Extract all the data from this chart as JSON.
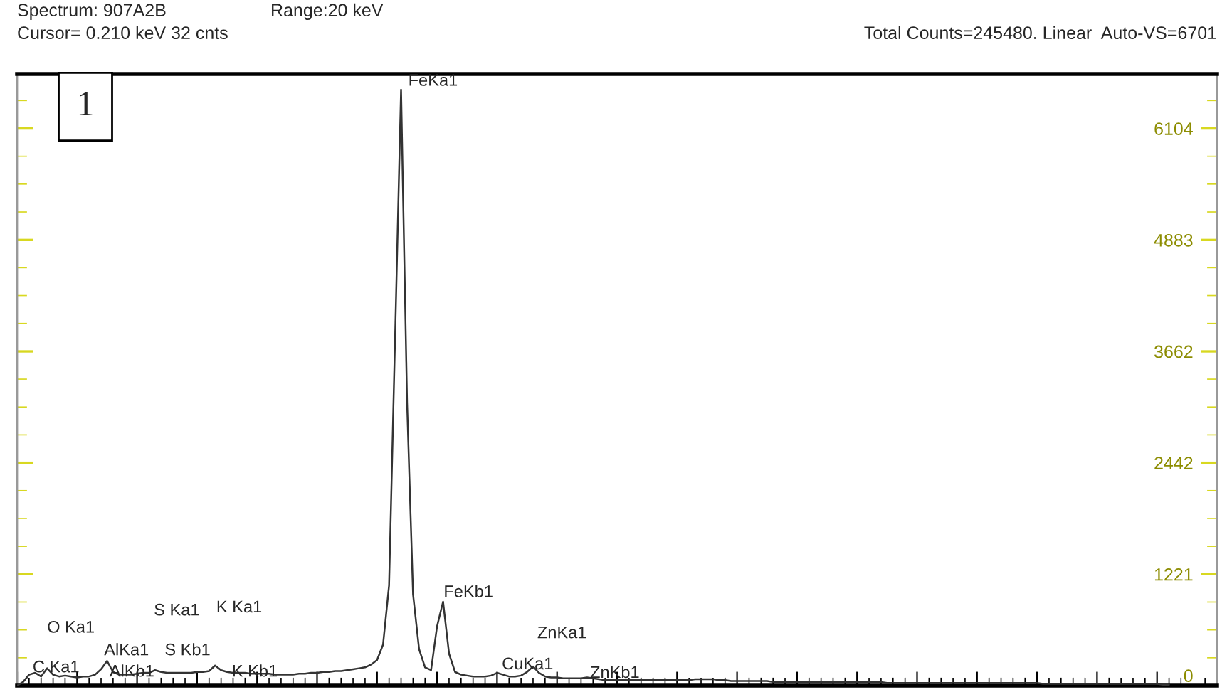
{
  "chart_data": {
    "type": "line",
    "annotations": [
      "Spectrum: 907A2B",
      "Range:20 keV",
      "Cursor= 0.210 keV 32 cnts",
      "Total Counts=245480. Linear  Auto-VS=6701",
      "1",
      "FeKa1",
      "FeKb1",
      "O Ka1",
      "C Ka1",
      "AlKa1",
      "AlKb1",
      "S Ka1",
      "S Kb1",
      "K Ka1",
      "K Kb1",
      "CuKa1",
      "ZnKa1",
      "ZnKb1"
    ],
    "categories": [
      null,
      null,
      null,
      null,
      null,
      null,
      null,
      null,
      null,
      null,
      null,
      null,
      null,
      null,
      null,
      null,
      null,
      null,
      null,
      null,
      null,
      null,
      null,
      null,
      null,
      null,
      null,
      null,
      null,
      null,
      null,
      null,
      null,
      null,
      null,
      null,
      null,
      null,
      null,
      null,
      null,
      null,
      null,
      null,
      null,
      null,
      null,
      null,
      null,
      null,
      null,
      null,
      null,
      null,
      null,
      null,
      null,
      null,
      null,
      null,
      null,
      null,
      null,
      null,
      null,
      null,
      null,
      null,
      null,
      null,
      null,
      null,
      null,
      null,
      null,
      null,
      null,
      null,
      null,
      null,
      null,
      null,
      null,
      null,
      null,
      null,
      null,
      null,
      null,
      null,
      null,
      null,
      null,
      null,
      null,
      null,
      null,
      null,
      null,
      null,
      null,
      null,
      null,
      null,
      null,
      null,
      null,
      null,
      null,
      null,
      null,
      null,
      null,
      null,
      null,
      null,
      null,
      null,
      null,
      null,
      null,
      null,
      null,
      null,
      null,
      null,
      null,
      null,
      null,
      null,
      null,
      null,
      null,
      null,
      null,
      null,
      null,
      null,
      null,
      null,
      null,
      null,
      null,
      null,
      null,
      null,
      null,
      null,
      null,
      null,
      null,
      null,
      null,
      null,
      null,
      null,
      null,
      null,
      null,
      null,
      null,
      null,
      null,
      null,
      null,
      null,
      null,
      null,
      null,
      null,
      null,
      null,
      null,
      null,
      null,
      null,
      null,
      null,
      null,
      null,
      null,
      null,
      null,
      null,
      null,
      null,
      null,
      null,
      null,
      null,
      null,
      null,
      null
    ],
    "series": [
      {
        "color": "#333333",
        "values": [
          0,
          40,
          120,
          140,
          100,
          190,
          120,
          100,
          110,
          100,
          90,
          100,
          100,
          120,
          180,
          270,
          150,
          120,
          120,
          120,
          130,
          140,
          140,
          170,
          150,
          140,
          140,
          140,
          140,
          140,
          150,
          150,
          160,
          220,
          170,
          150,
          140,
          140,
          140,
          130,
          130,
          130,
          130,
          120,
          120,
          120,
          120,
          130,
          130,
          140,
          140,
          150,
          150,
          160,
          160,
          170,
          180,
          190,
          200,
          230,
          280,
          450,
          1100,
          3800,
          6530,
          3100,
          1000,
          400,
          200,
          170,
          650,
          920,
          350,
          150,
          120,
          110,
          100,
          100,
          100,
          110,
          140,
          120,
          100,
          100,
          110,
          150,
          210,
          140,
          100,
          90,
          90,
          80,
          80,
          80,
          80,
          90,
          80,
          70,
          60,
          60,
          60,
          60,
          60,
          60,
          60,
          60,
          60,
          60,
          60,
          60,
          60,
          60,
          60,
          70,
          70,
          70,
          70,
          60,
          60,
          50,
          50,
          50,
          50,
          50,
          50,
          50,
          40,
          40,
          40,
          40,
          40,
          40,
          40,
          40,
          40,
          40,
          40,
          40,
          40,
          40,
          40,
          40,
          40,
          40,
          40,
          30,
          30,
          30,
          30,
          30,
          30,
          30,
          30,
          30,
          30,
          30,
          30,
          30,
          30,
          30,
          30,
          30,
          30,
          30,
          30,
          30,
          30,
          30,
          30,
          30,
          30,
          20,
          20,
          20,
          20,
          20,
          20,
          20,
          20,
          20,
          20,
          20,
          20,
          20,
          20,
          20,
          20,
          20,
          20,
          20,
          20,
          10,
          10
        ]
      }
    ],
    "ylim": [
      0,
      6701
    ],
    "yticks": [
      0,
      1221,
      2442,
      3662,
      4883,
      6104
    ],
    "tick_labels": "y"
  }
}
